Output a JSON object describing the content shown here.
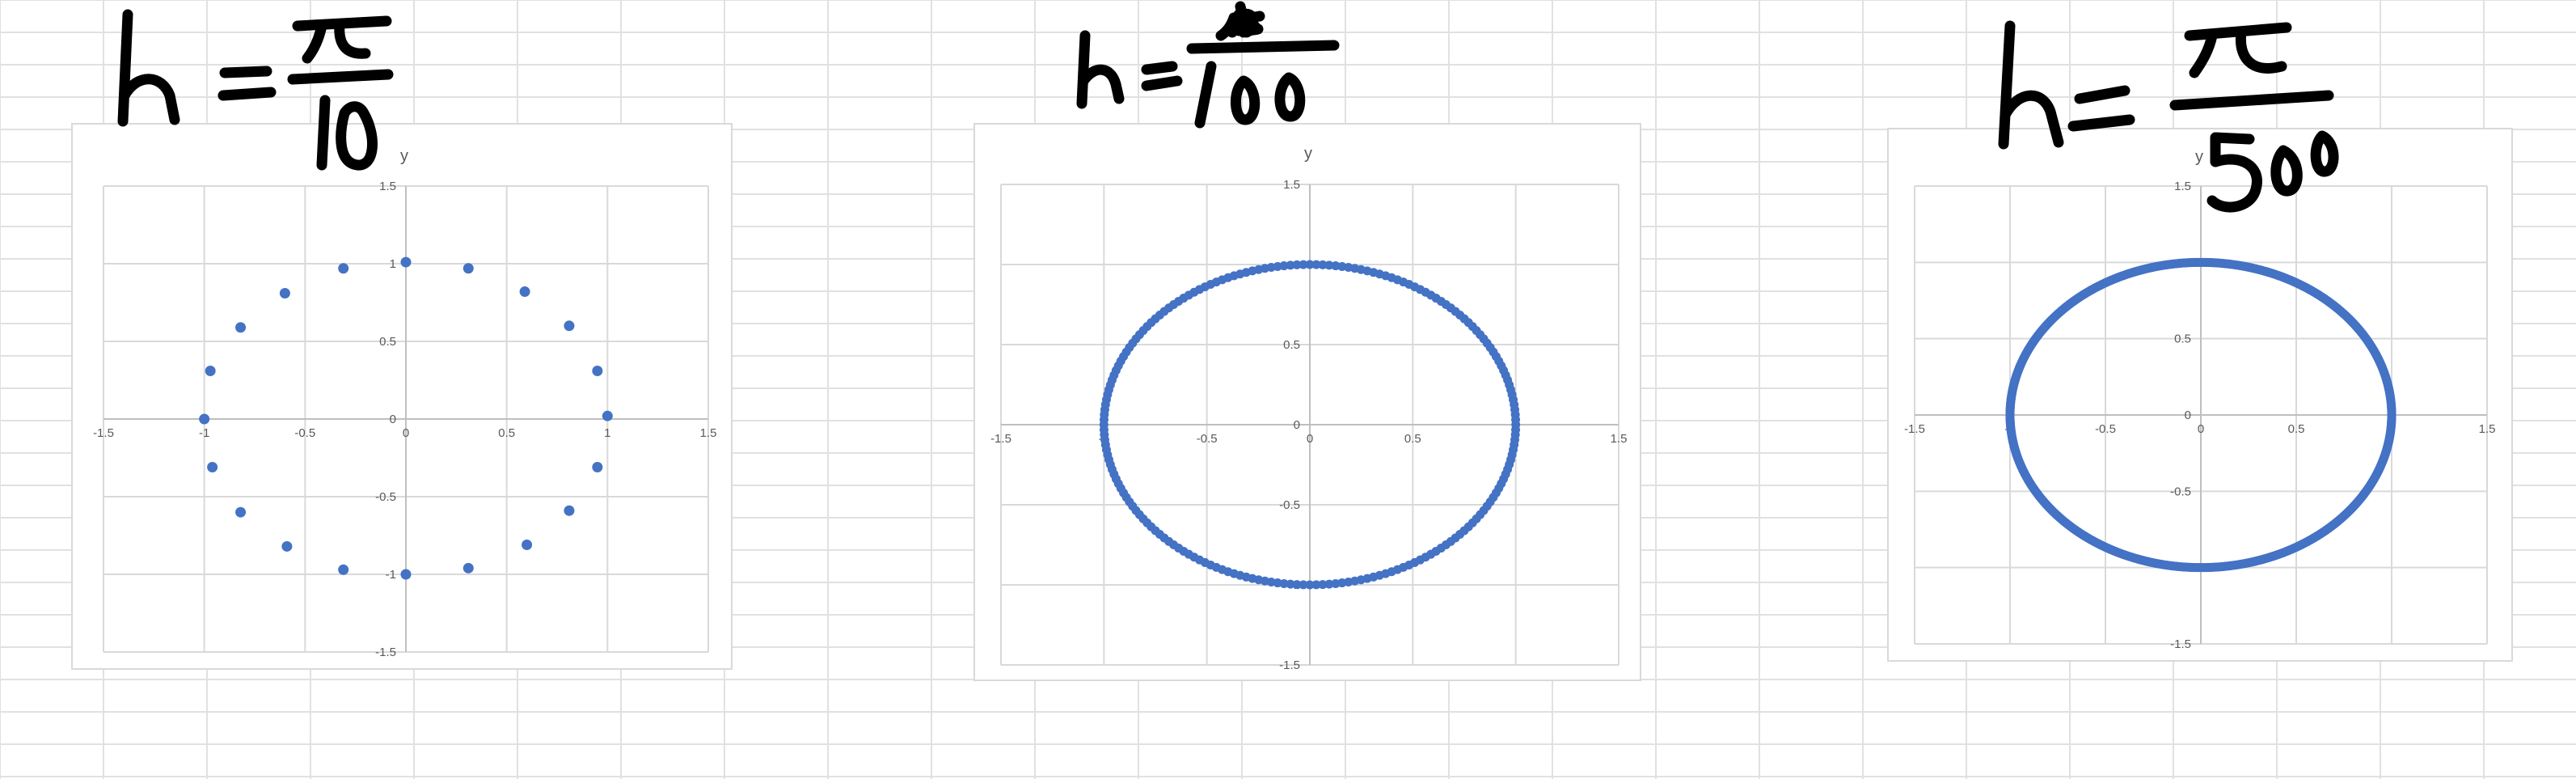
{
  "colors": {
    "marker": "#4472C4",
    "gridline": "#d9d9d9",
    "axis_line": "#bfbfbf",
    "tick_text": "#595959",
    "sheet_grid": "#e1e1e1",
    "ink": "#000000"
  },
  "annotations": [
    {
      "text": "h = π/10"
    },
    {
      "text": "h = π/100"
    },
    {
      "text": "h = π/500"
    }
  ],
  "chart_data": [
    {
      "type": "scatter",
      "title": "",
      "xlabel": "",
      "ylabel": "y",
      "xlim": [
        -1.5,
        1.5
      ],
      "ylim": [
        -1.5,
        1.5
      ],
      "x_ticks": [
        "-1.5",
        "-1",
        "-0.5",
        "0",
        "0.5",
        "1",
        "1.5"
      ],
      "y_ticks": [
        "-1.5",
        "-1",
        "-0.5",
        "0",
        "0.5",
        "1",
        "1.5"
      ],
      "grid": true,
      "legend": "none",
      "series": [
        {
          "points": [
            [
              1.0,
              0.02
            ],
            [
              0.95,
              0.31
            ],
            [
              0.81,
              0.6
            ],
            [
              0.59,
              0.82
            ],
            [
              0.31,
              0.97
            ],
            [
              0.0,
              1.01
            ],
            [
              -0.31,
              0.97
            ],
            [
              -0.6,
              0.81
            ],
            [
              -0.82,
              0.59
            ],
            [
              -0.97,
              0.31
            ],
            [
              -1.0,
              0.0
            ],
            [
              -0.96,
              -0.31
            ],
            [
              -0.82,
              -0.6
            ],
            [
              -0.59,
              -0.82
            ],
            [
              -0.31,
              -0.97
            ],
            [
              0.0,
              -1.0
            ],
            [
              0.31,
              -0.96
            ],
            [
              0.6,
              -0.81
            ],
            [
              0.81,
              -0.59
            ],
            [
              0.95,
              -0.31
            ]
          ]
        }
      ]
    },
    {
      "type": "scatter",
      "title": "",
      "xlabel": "",
      "ylabel": "y",
      "xlim": [
        -1.5,
        1.5
      ],
      "ylim": [
        -1.5,
        1.5
      ],
      "x_ticks": [
        "-1.5",
        "-1",
        "-0.5",
        "0",
        "0.5",
        "1",
        "1.5"
      ],
      "y_ticks": [
        "-1.5",
        "-1",
        "-0.5",
        "0",
        "0.5",
        "1",
        "1.5"
      ],
      "grid": true,
      "legend": "none",
      "series": [
        {
          "parametric": "unit_circle",
          "points_count": 200
        }
      ]
    },
    {
      "type": "scatter",
      "title": "",
      "xlabel": "",
      "ylabel": "y",
      "xlim": [
        -1.5,
        1.5
      ],
      "ylim": [
        -1.5,
        1.5
      ],
      "x_ticks": [
        "-1.5",
        "-1",
        "-0.5",
        "0",
        "0.5",
        "1",
        "1.5"
      ],
      "y_ticks": [
        "-1.5",
        "-1",
        "-0.5",
        "0",
        "0.5",
        "1",
        "1.5"
      ],
      "grid": true,
      "legend": "none",
      "series": [
        {
          "parametric": "unit_circle",
          "points_count": 1000
        }
      ]
    }
  ]
}
